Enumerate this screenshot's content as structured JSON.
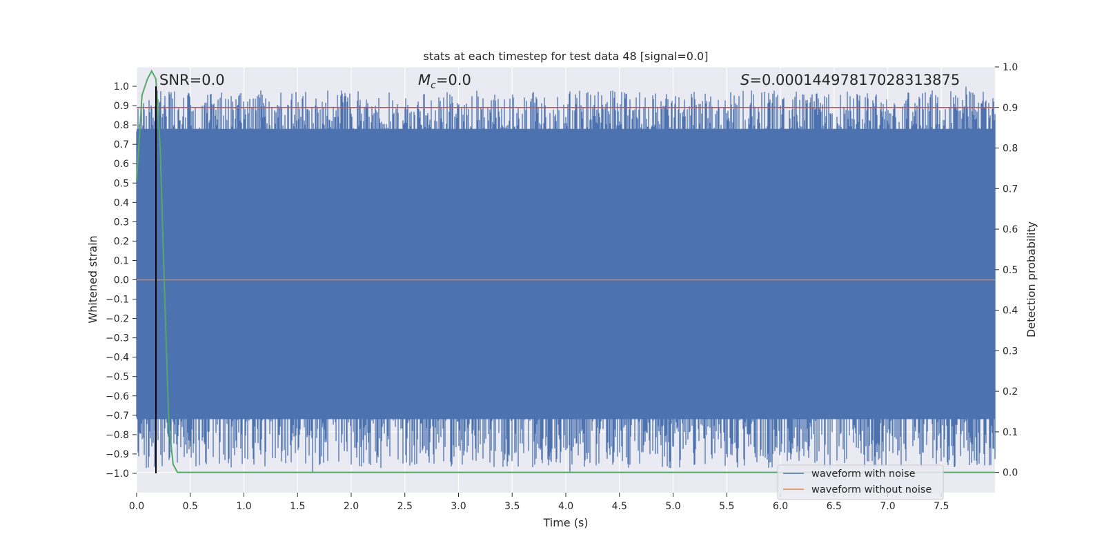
{
  "chart_data": {
    "type": "line",
    "title": "stats at each timestep for test data 48 [signal=0.0]",
    "xlabel": "Time (s)",
    "ylabel": "Whitened strain",
    "ylabel_right": "Detection probability",
    "xlim": [
      0.0,
      8.0
    ],
    "ylim": [
      -1.1,
      1.1
    ],
    "ylim_right": [
      -0.05,
      1.0
    ],
    "xticks": [
      "0.0",
      "0.5",
      "1.0",
      "1.5",
      "2.0",
      "2.5",
      "3.0",
      "3.5",
      "4.0",
      "4.5",
      "5.0",
      "5.5",
      "6.0",
      "6.5",
      "7.0",
      "7.5"
    ],
    "yticks": [
      "1.0",
      "0.9",
      "0.8",
      "0.7",
      "0.6",
      "0.5",
      "0.4",
      "0.3",
      "0.2",
      "0.1",
      "0.0",
      "−0.1",
      "−0.2",
      "−0.3",
      "−0.4",
      "−0.5",
      "−0.6",
      "−0.7",
      "−0.8",
      "−0.9",
      "−1.0"
    ],
    "yticks_right": [
      "1.0",
      "0.9",
      "0.8",
      "0.7",
      "0.6",
      "0.5",
      "0.4",
      "0.3",
      "0.2",
      "0.1",
      "0.0"
    ],
    "annotations": {
      "snr": "SNR=0.0",
      "mc_symbol": "M",
      "mc_sub": "c",
      "mc_value": "=0.0",
      "s_symbol": "S",
      "s_value": "=0.00014497817028313875"
    },
    "marker_time": 0.18,
    "threshold_right": 0.9,
    "series": [
      {
        "name": "waveform with noise",
        "color": "#4c72b0",
        "description_values": "dense noise spanning approx -1.0 to 1.0 across 0–8 s"
      },
      {
        "name": "waveform without noise",
        "color": "#dd8452",
        "values_constant": 0.0
      },
      {
        "name": "detection probability",
        "color": "#55a868",
        "x": [
          0.0,
          0.05,
          0.1,
          0.14,
          0.18,
          0.22,
          0.26,
          0.3,
          0.34,
          0.38,
          8.0
        ],
        "y": [
          0.72,
          0.93,
          0.97,
          0.99,
          0.97,
          0.8,
          0.45,
          0.12,
          0.02,
          0.0,
          0.0
        ]
      }
    ],
    "legend_entries": [
      "waveform with noise",
      "waveform without noise"
    ],
    "legend_position": "lower-right",
    "grid": true
  },
  "colors": {
    "axes_bg": "#eaeaf2",
    "grid": "#ffffff",
    "noise": "#4c72b0",
    "clean": "#dd8452",
    "prob": "#55a868",
    "threshold": "#c44e52"
  }
}
